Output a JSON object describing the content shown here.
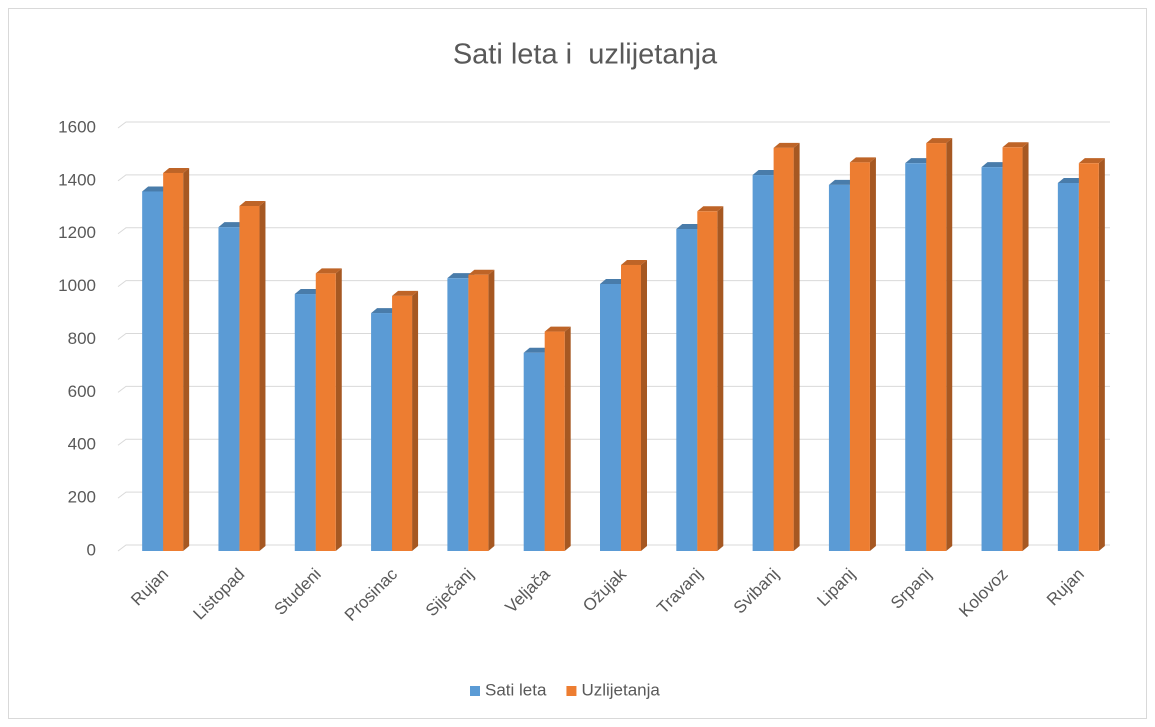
{
  "chart_data": {
    "type": "bar3d",
    "title": "Sati leta i  uzlijetanja",
    "categories": [
      "Rujan",
      "Listopad",
      "Studeni",
      "Prosinac",
      "Siječanj",
      "Veljača",
      "Ožujak",
      "Travanj",
      "Svibanj",
      "Lipanj",
      "Srpanj",
      "Kolovoz",
      "Rujan"
    ],
    "series": [
      {
        "name": "Sati leta",
        "color": "#5b9bd5",
        "values": [
          1360,
          1225,
          972,
          900,
          1032,
          750,
          1010,
          1218,
          1422,
          1385,
          1467,
          1452,
          1392
        ]
      },
      {
        "name": "Uzlijetanja",
        "color": "#ed7d31",
        "values": [
          1430,
          1305,
          1050,
          965,
          1045,
          830,
          1082,
          1285,
          1525,
          1470,
          1543,
          1527,
          1467
        ]
      }
    ],
    "ylim": [
      0,
      1600
    ],
    "yticks": [
      0,
      200,
      400,
      600,
      800,
      1000,
      1200,
      1400,
      1600
    ],
    "grid": true,
    "legend": "bottom"
  }
}
